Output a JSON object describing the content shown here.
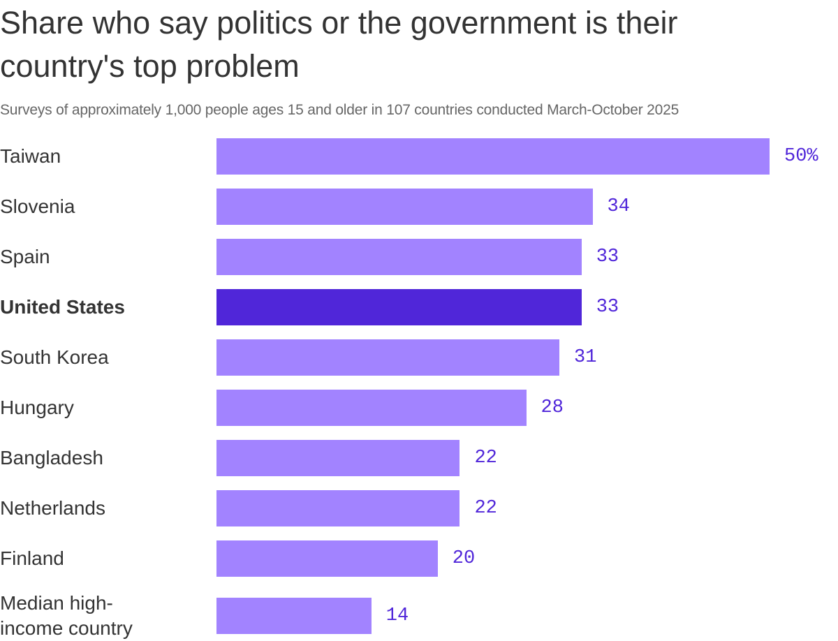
{
  "chart_data": {
    "type": "bar",
    "orientation": "horizontal",
    "title": "Share who say politics or the government is their country's top problem",
    "subtitle": "Surveys of approximately 1,000 people ages 15 and older in 107 countries conducted March-October 2025",
    "categories": [
      "Taiwan",
      "Slovenia",
      "Spain",
      "United States",
      "South Korea",
      "Hungary",
      "Bangladesh",
      "Netherlands",
      "Finland",
      "Median high-income country"
    ],
    "values": [
      50,
      34,
      33,
      33,
      31,
      28,
      22,
      22,
      20,
      14
    ],
    "value_labels": [
      "50%",
      "34",
      "33",
      "33",
      "31",
      "28",
      "22",
      "22",
      "20",
      "14"
    ],
    "color": "#a283ff",
    "highlight": "United States",
    "highlight_color": "#5026d9",
    "xlim": [
      0,
      50
    ]
  }
}
